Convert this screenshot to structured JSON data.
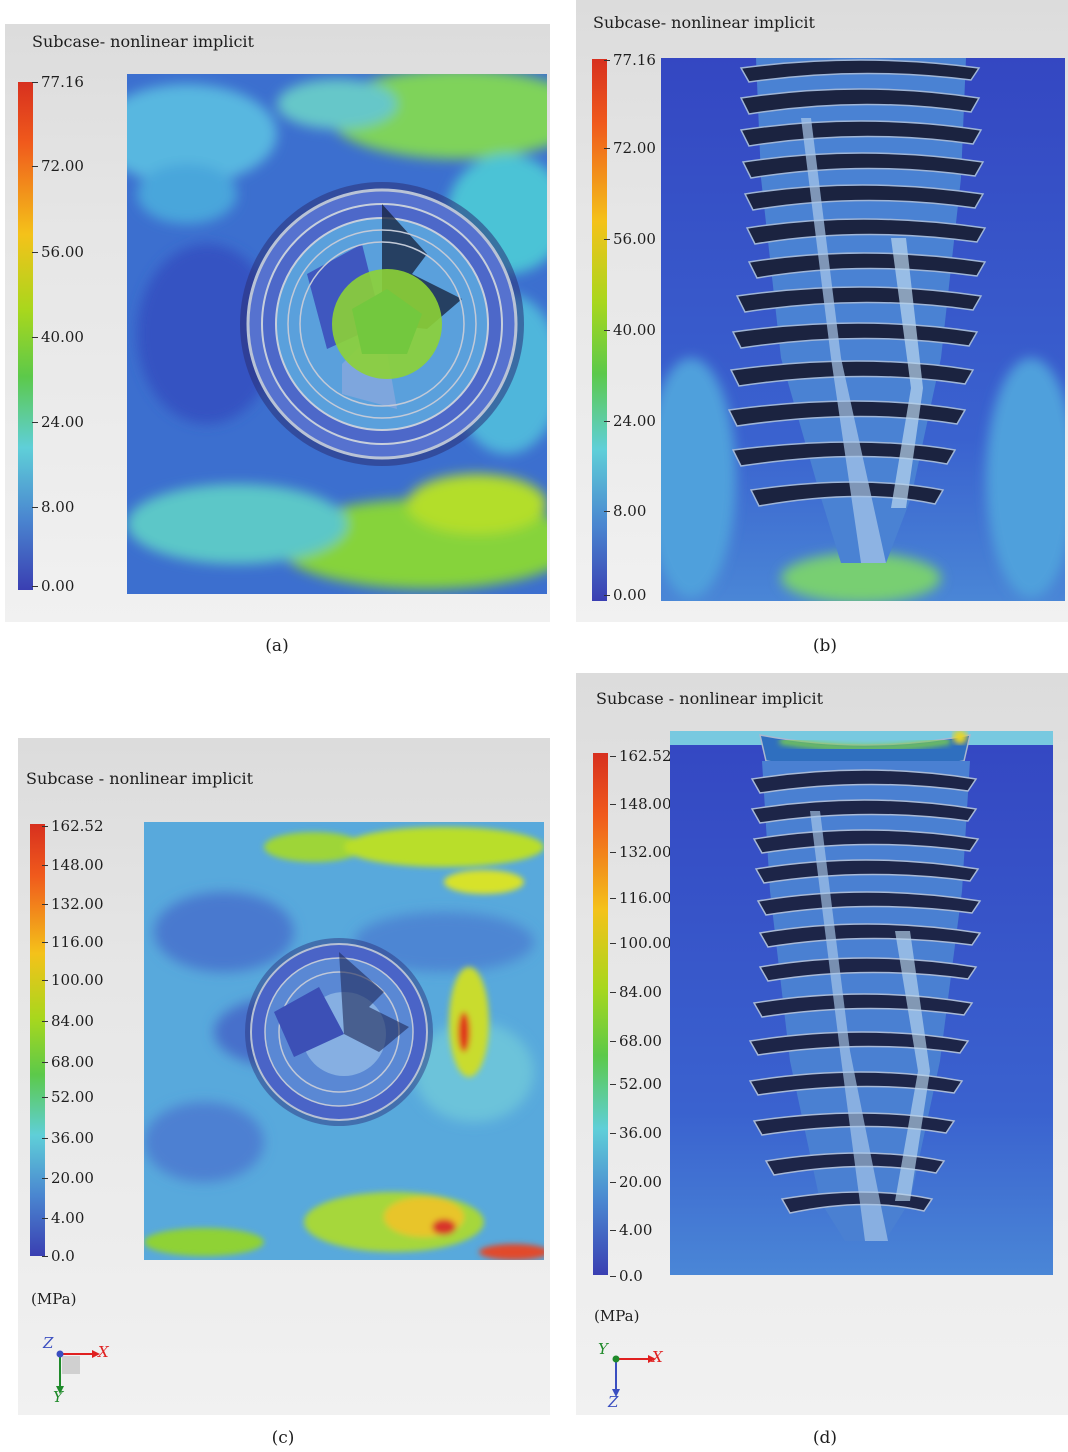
{
  "panels": {
    "a": {
      "title": "Subcase- nonlinear implicit",
      "legend": [
        "77.16",
        "72.00",
        "56.00",
        "40.00",
        "24.00",
        "8.00",
        "0.00"
      ],
      "caption": "(a)"
    },
    "b": {
      "title": "Subcase- nonlinear implicit",
      "legend": [
        "77.16",
        "72.00",
        "56.00",
        "40.00",
        "24.00",
        "8.00",
        "0.00"
      ],
      "caption": "(b)"
    },
    "c": {
      "title": "Subcase - nonlinear implicit",
      "legend": [
        "162.52",
        "148.00",
        "132.00",
        "116.00",
        "100.00",
        "84.00",
        "68.00",
        "52.00",
        "36.00",
        "20.00",
        "4.00",
        "0.0"
      ],
      "unit": "(MPa)",
      "axes": {
        "horizontal": "X",
        "vertical": "Y",
        "out": "Z"
      },
      "caption": "(c)"
    },
    "d": {
      "title": "Subcase - nonlinear implicit",
      "legend": [
        "162.52",
        "148.00",
        "132.00",
        "116.00",
        "100.00",
        "84.00",
        "68.00",
        "52.00",
        "36.00",
        "20.00",
        "4.00",
        "0.0"
      ],
      "unit": "(MPa)",
      "axes": {
        "horizontal": "X",
        "vertical": "Z",
        "out": "Y"
      },
      "caption": "(d)"
    }
  },
  "colors": {
    "scale_top": "#d7301f",
    "scale_high": "#f59a1b",
    "scale_mid": "#f2e41a",
    "scale_green": "#7ec821",
    "scale_cyan": "#5fd0d8",
    "scale_blue": "#4a86d0",
    "scale_bottom": "#3a42b5",
    "axis_x": "#e02020",
    "axis_y": "#1f8a2a",
    "axis_z": "#3a4ec0"
  }
}
